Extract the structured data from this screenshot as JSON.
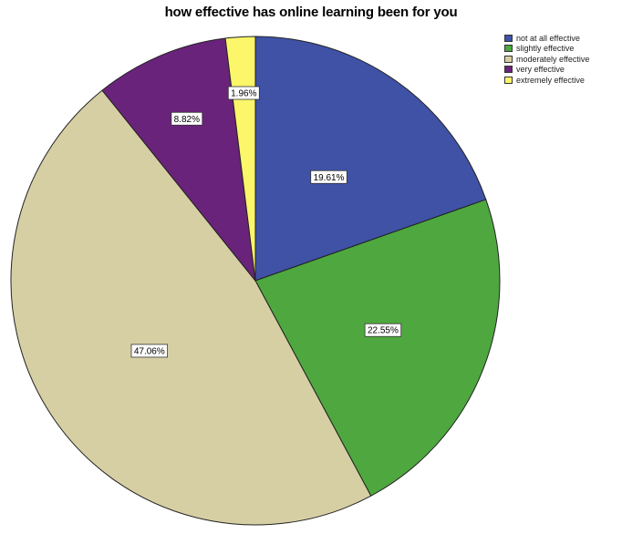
{
  "chart_data": {
    "type": "pie",
    "title": "how effective has online learning been for you",
    "legend_position": "top-right",
    "slices": [
      {
        "name": "not at all effective",
        "value": 19.61,
        "label": "19.61%",
        "color": "#3f52a6"
      },
      {
        "name": "slightly effective",
        "value": 22.55,
        "label": "22.55%",
        "color": "#4ea83f"
      },
      {
        "name": "moderately effective",
        "value": 47.06,
        "label": "47.06%",
        "color": "#d6cfa4"
      },
      {
        "name": "very effective",
        "value": 8.82,
        "label": "8.82%",
        "color": "#6a237b"
      },
      {
        "name": "extremely effective",
        "value": 1.96,
        "label": "1.96%",
        "color": "#fbf66a"
      }
    ]
  }
}
